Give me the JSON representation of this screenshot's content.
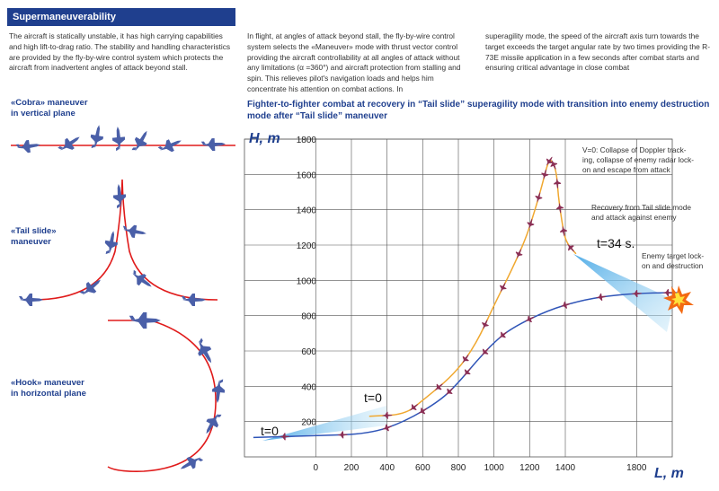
{
  "header": {
    "title": "Supermaneuverability"
  },
  "intro": {
    "col1": "The aircraft is statically unstable, it has high carrying capabilities and high lift-to-drag ratio. The stability and handling characteristics are provided by the fly-by-wire control system which protects the aircraft from inadvertent angles of attack beyond stall.",
    "col2": "In flight, at angles of attack beyond stall, the fly-by-wire control system selects the «Maneuver» mode with thrust vector control providing the aircraft controllability at all angles of attack without any limitations (α =360°) and aircraft protection from stalling and spin. This relieves pilot's navigation loads and helps him concentrate his attention on combat actions. In",
    "col3": "superagility mode, the speed of the aircraft axis turn towards the target exceeds the target angular rate by two times providing the R-73E missile application in a few seconds after combat starts and ensuring critical advantage in close combat"
  },
  "maneuvers": {
    "cobra": {
      "line1": "«Cobra» maneuver",
      "line2": "in vertical plane"
    },
    "tail_slide": {
      "line1": "«Tail slide»",
      "line2": "maneuver"
    },
    "hook": {
      "line1": "«Hook» maneuver",
      "line2": "in horizontal plane"
    }
  },
  "main_title": "Fighter-to-fighter combat at recovery in “Tail slide” superagility mode with transition into enemy destruction mode after “Tail slide” maneuver",
  "annotations": {
    "collapse": [
      "V=0: Collapse of Doppler track-",
      "ing, collapse of enemy radar lock-",
      "on and escape from attack"
    ],
    "recovery": [
      "Recovery from Tail slide mode",
      "and attack against enemy"
    ],
    "enemy_lock": [
      "Enemy target lock-",
      "on and destruction"
    ],
    "t0_a": "t=0",
    "t0_b": "t=0",
    "t34": "t=34 s."
  },
  "colors": {
    "header_bg": "#1f3f8e",
    "own_path": "#f0a830",
    "enemy_path": "#2f55b8",
    "maneuver_path": "#e01b1b",
    "jet": "#4a5fa8",
    "bandit": "#8b2f55",
    "beam": "#7ec8ef"
  },
  "chart_data": {
    "type": "line",
    "xlabel": "L, m",
    "ylabel": "H, m",
    "x_ticks": [
      0,
      200,
      400,
      600,
      800,
      1000,
      1200,
      1400,
      1800
    ],
    "y_ticks": [
      200,
      400,
      600,
      800,
      1000,
      1200,
      1400,
      1600,
      1800
    ],
    "xlim": [
      -400,
      2000
    ],
    "ylim": [
      0,
      1800
    ],
    "grid": true,
    "series": [
      {
        "points": [
          [
            300,
            230
          ],
          [
            500,
            240
          ],
          [
            600,
            320
          ],
          [
            780,
            470
          ],
          [
            900,
            640
          ],
          [
            1000,
            860
          ],
          [
            1100,
            1060
          ],
          [
            1180,
            1240
          ],
          [
            1230,
            1400
          ],
          [
            1270,
            1540
          ],
          [
            1300,
            1660
          ],
          [
            1320,
            1690
          ],
          [
            1350,
            1620
          ],
          [
            1360,
            1480
          ],
          [
            1380,
            1340
          ],
          [
            1400,
            1220
          ],
          [
            1460,
            1150
          ]
        ]
      },
      {
        "points": [
          [
            -350,
            110
          ],
          [
            0,
            120
          ],
          [
            300,
            130
          ],
          [
            500,
            200
          ],
          [
            700,
            320
          ],
          [
            800,
            420
          ],
          [
            900,
            540
          ],
          [
            1000,
            650
          ],
          [
            1100,
            730
          ],
          [
            1300,
            830
          ],
          [
            1500,
            890
          ],
          [
            1700,
            920
          ],
          [
            1900,
            930
          ],
          [
            2050,
            930
          ]
        ]
      }
    ]
  }
}
